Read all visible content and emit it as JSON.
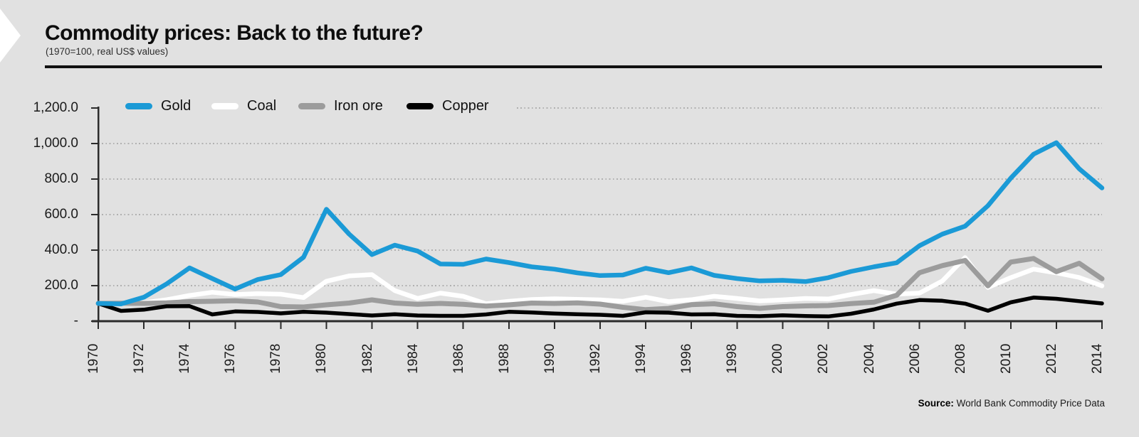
{
  "header": {
    "title": "Commodity prices: Back to the future?",
    "subtitle": "(1970=100, real US$ values)"
  },
  "source": {
    "label": "Source:",
    "text": " World Bank Commodity Price Data"
  },
  "colors": {
    "background": "#e1e1e1",
    "axis": "#2b2b2b",
    "gridline": "#b0b0b0",
    "text": "#1a1a1a",
    "gold": "#1b9ad6",
    "coal": "#ffffff",
    "iron_ore": "#9c9c9c",
    "copper": "#000000"
  },
  "chart_data": {
    "type": "line",
    "title": "Commodity prices: Back to the future?",
    "subtitle": "(1970=100, real US$ values)",
    "xlabel": "",
    "ylabel": "",
    "ylim": [
      0,
      1200
    ],
    "grid": "horizontal-dotted",
    "legend_position": "top-inside",
    "x": [
      1970,
      1971,
      1972,
      1973,
      1974,
      1975,
      1976,
      1977,
      1978,
      1979,
      1980,
      1981,
      1982,
      1983,
      1984,
      1985,
      1986,
      1987,
      1988,
      1989,
      1990,
      1991,
      1992,
      1993,
      1994,
      1995,
      1996,
      1997,
      1998,
      1999,
      2000,
      2001,
      2002,
      2003,
      2004,
      2005,
      2006,
      2007,
      2008,
      2009,
      2010,
      2011,
      2012,
      2013,
      2014
    ],
    "x_tick_labels": [
      "1970",
      "1972",
      "1974",
      "1976",
      "1978",
      "1980",
      "1982",
      "1984",
      "1986",
      "1988",
      "1990",
      "1992",
      "1994",
      "1996",
      "1998",
      "2000",
      "2002",
      "2004",
      "2006",
      "2008",
      "2010",
      "2012",
      "2014"
    ],
    "y_ticks": [
      {
        "value": 1200,
        "label": "1,200.0"
      },
      {
        "value": 1000,
        "label": "1,000.0"
      },
      {
        "value": 800,
        "label": "800.0"
      },
      {
        "value": 600,
        "label": "600.0"
      },
      {
        "value": 400,
        "label": "400.0"
      },
      {
        "value": 200,
        "label": "200.0"
      },
      {
        "value": 0,
        "label": "-"
      }
    ],
    "series": [
      {
        "name": "Gold",
        "color": "#1b9ad6",
        "values": [
          100,
          97,
          135,
          210,
          300,
          240,
          181,
          235,
          262,
          360,
          630,
          490,
          375,
          428,
          395,
          322,
          320,
          350,
          330,
          306,
          293,
          272,
          257,
          260,
          298,
          273,
          300,
          258,
          240,
          227,
          230,
          223,
          245,
          280,
          306,
          329,
          425,
          490,
          535,
          650,
          805,
          940,
          1005,
          858,
          750
        ]
      },
      {
        "name": "Coal",
        "color": "#ffffff",
        "values": [
          100,
          98,
          104,
          121,
          145,
          163,
          150,
          155,
          152,
          133,
          225,
          255,
          262,
          172,
          128,
          158,
          140,
          98,
          112,
          122,
          126,
          123,
          120,
          112,
          135,
          110,
          121,
          140,
          128,
          114,
          120,
          128,
          125,
          150,
          172,
          152,
          158,
          226,
          358,
          190,
          245,
          293,
          272,
          246,
          199
        ]
      },
      {
        "name": "Iron ore",
        "color": "#9c9c9c",
        "values": [
          100,
          101,
          100,
          103,
          110,
          112,
          115,
          108,
          82,
          80,
          92,
          102,
          120,
          102,
          95,
          100,
          95,
          85,
          92,
          102,
          100,
          103,
          96,
          78,
          65,
          72,
          93,
          98,
          82,
          72,
          82,
          86,
          88,
          99,
          107,
          146,
          273,
          313,
          342,
          199,
          333,
          353,
          279,
          326,
          239
        ]
      },
      {
        "name": "Copper",
        "color": "#000000",
        "values": [
          100,
          58,
          65,
          84,
          85,
          38,
          55,
          52,
          44,
          53,
          48,
          40,
          32,
          39,
          32,
          30,
          30,
          38,
          53,
          49,
          43,
          39,
          36,
          30,
          50,
          48,
          38,
          39,
          30,
          28,
          33,
          29,
          27,
          42,
          66,
          99,
          119,
          115,
          99,
          59,
          106,
          133,
          126,
          113,
          100
        ]
      }
    ]
  }
}
